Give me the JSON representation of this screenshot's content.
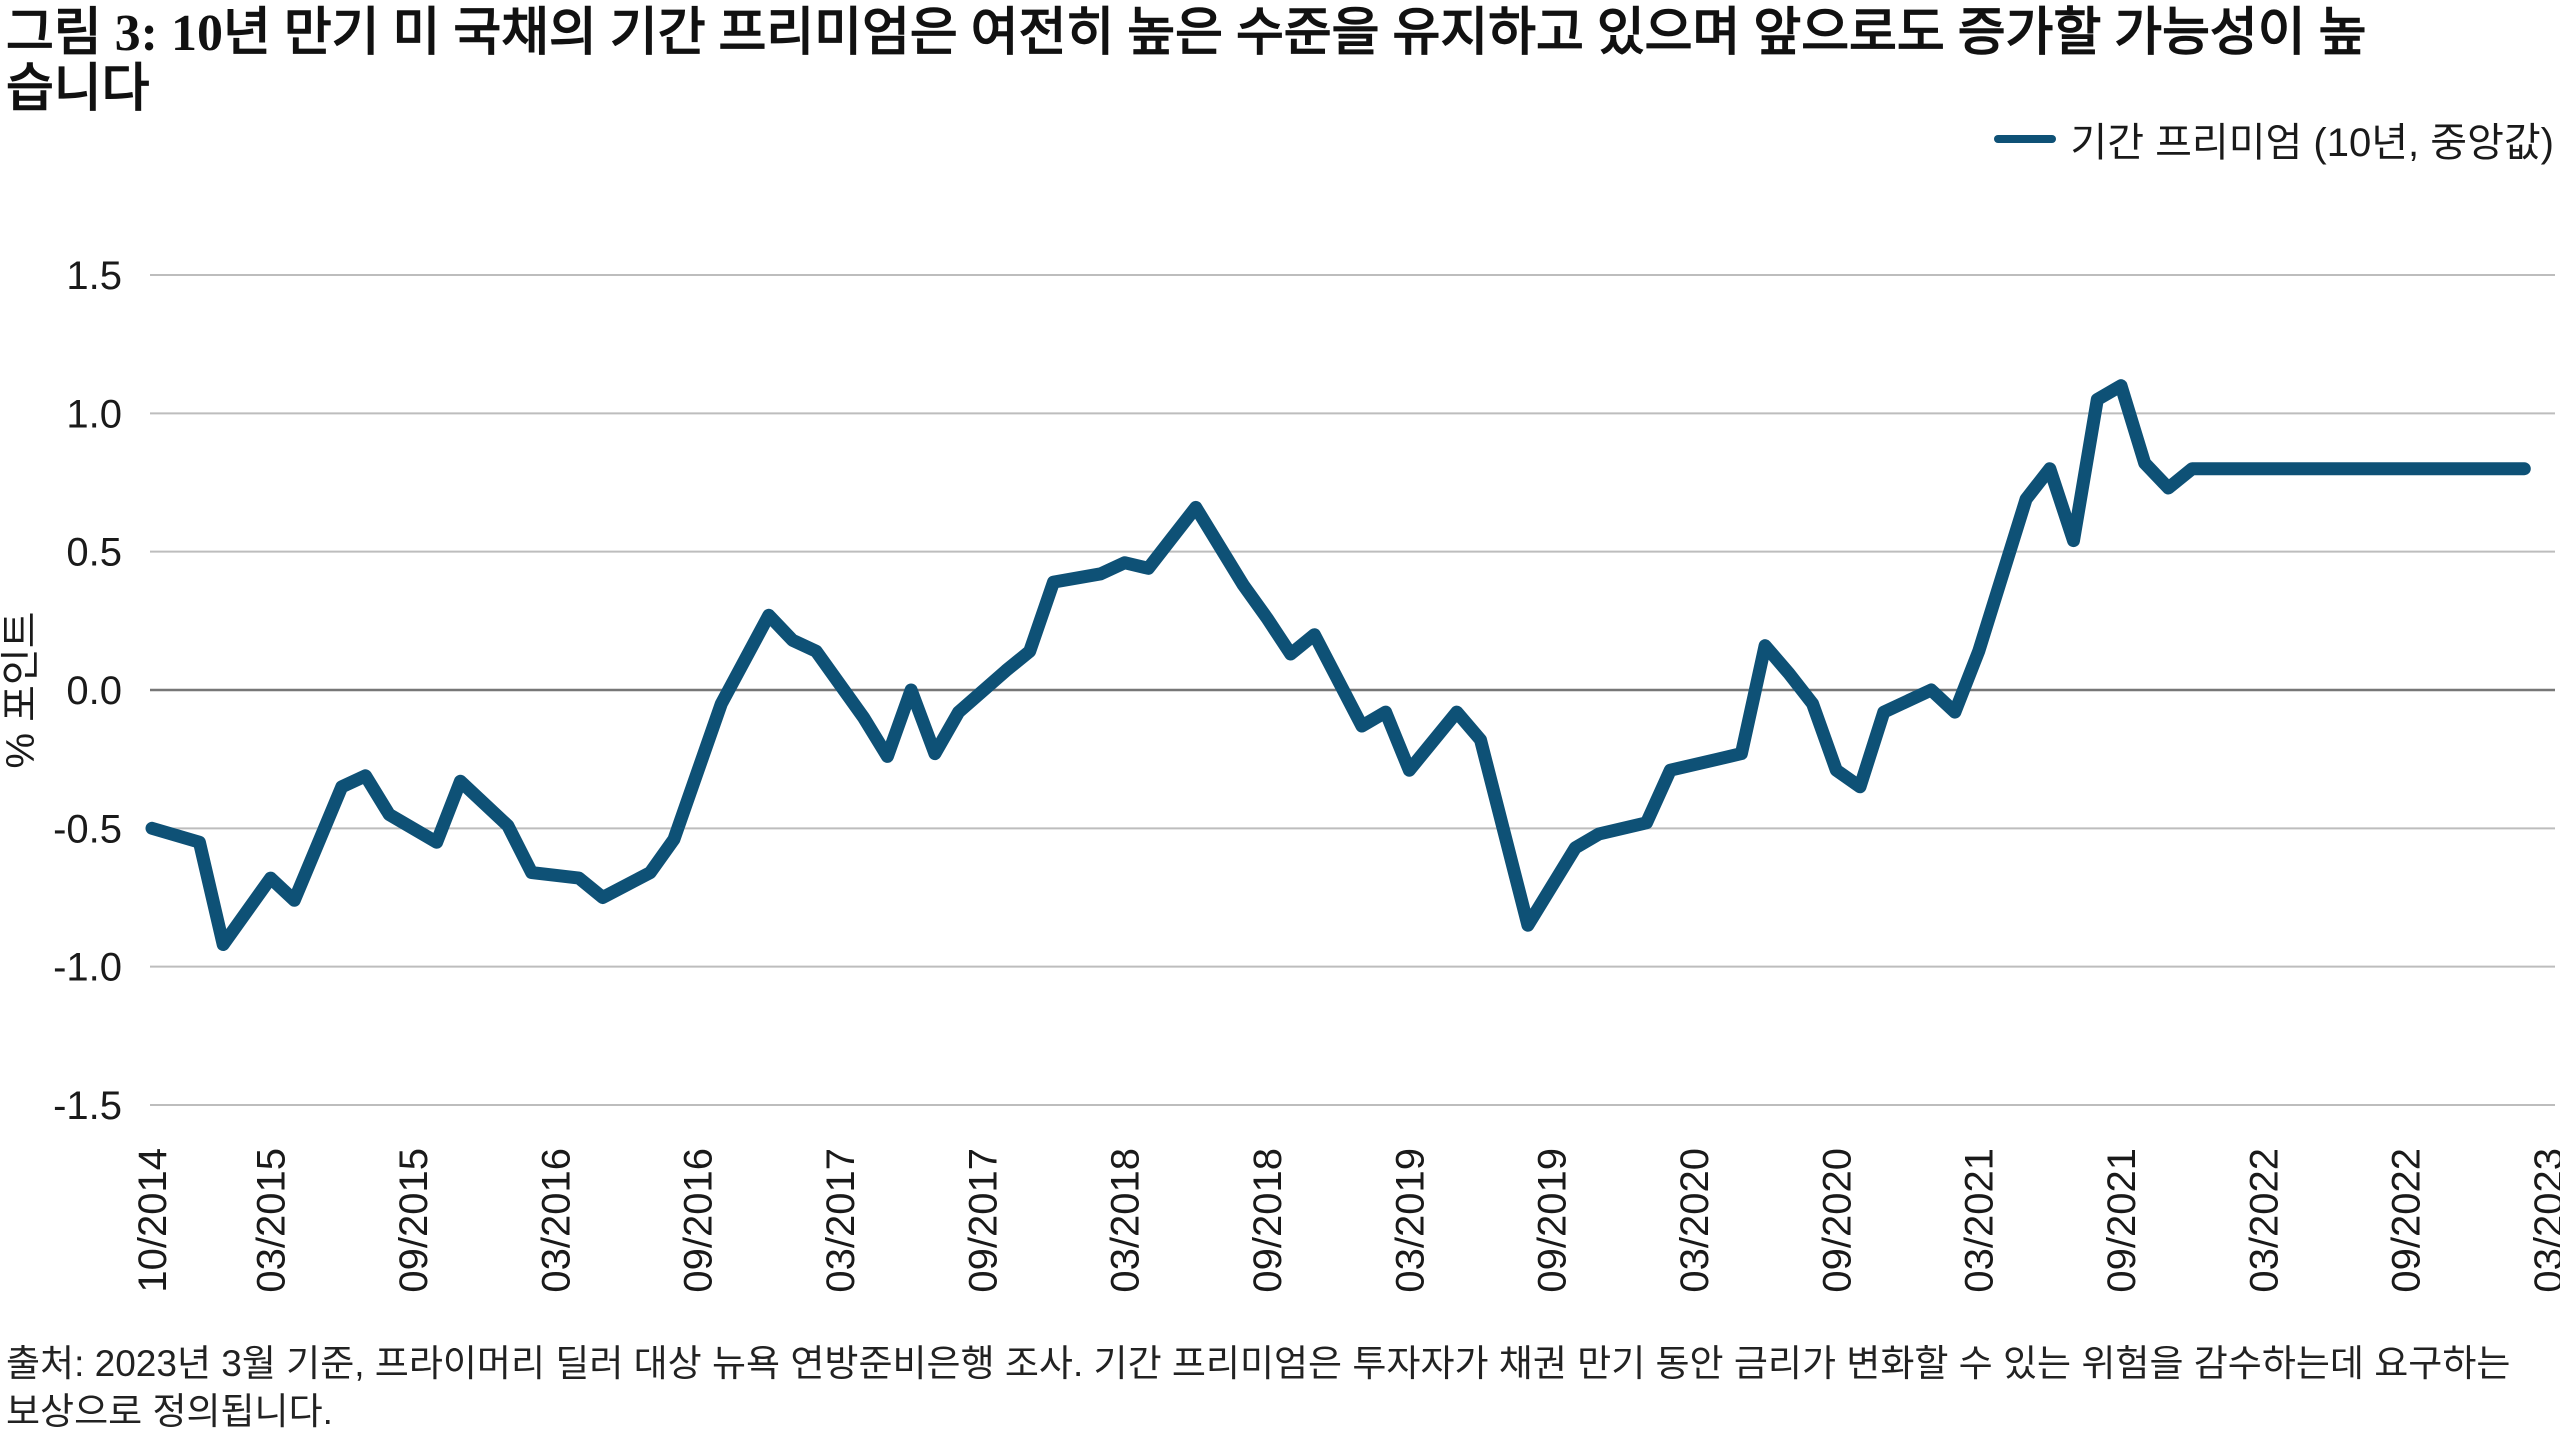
{
  "title": "그림 3: 10년 만기 미 국채의 기간 프리미엄은 여전히 높은 수준을 유지하고 있으며 앞으로도 증가할 가능성이 높습니다",
  "footnote": "출처: 2023년 3월 기준, 프라이머리 딜러 대상 뉴욕 연방준비은행 조사. 기간 프리미엄은 투자자가 채권 만기 동안 금리가 변화할 수 있는 위험을 감수하는데 요구하는 보상으로 정의됩니다.",
  "chart_data": {
    "type": "line",
    "ylabel": "% 포인트",
    "xlabel": "",
    "ylim": [
      -1.5,
      1.5
    ],
    "yticks": [
      "1.5",
      "1.0",
      "0.5",
      "0.0",
      "-0.5",
      "-1.0",
      "-1.5"
    ],
    "ytick_values": [
      1.5,
      1.0,
      0.5,
      0.0,
      -0.5,
      -1.0,
      -1.5
    ],
    "xticks": [
      "10/2014",
      "03/2015",
      "09/2015",
      "03/2016",
      "09/2016",
      "03/2017",
      "09/2017",
      "03/2018",
      "09/2018",
      "03/2019",
      "09/2019",
      "03/2020",
      "09/2020",
      "03/2021",
      "09/2021",
      "03/2022",
      "09/2022",
      "03/2023"
    ],
    "xtick_months": [
      0,
      5,
      11,
      17,
      23,
      29,
      35,
      41,
      47,
      53,
      59,
      65,
      71,
      77,
      83,
      89,
      95,
      101
    ],
    "grid": true,
    "legend_position": "top-right",
    "colors": {
      "series": "#0e5176",
      "grid": "#bdbdbd",
      "zero": "#777777"
    },
    "series": [
      {
        "name": "기간 프리미엄 (10년, 중앙값)",
        "x": [
          0,
          2,
          3,
          5,
          6,
          8,
          9,
          10,
          12,
          13,
          15,
          16,
          18,
          19,
          21,
          22,
          24,
          26,
          27,
          28,
          30,
          31,
          32,
          33,
          34,
          36,
          37,
          38,
          40,
          41,
          42,
          43,
          44,
          46,
          47,
          48,
          49,
          51,
          52,
          53,
          55,
          56,
          58,
          60,
          61,
          63,
          64,
          66,
          67,
          68,
          69,
          70,
          71,
          72,
          73,
          75,
          76,
          77,
          79,
          80,
          81,
          82,
          83,
          84,
          85,
          86,
          88,
          89,
          90,
          91,
          92,
          94,
          96,
          97,
          98,
          100
        ],
        "values": [
          -0.5,
          -0.55,
          -0.92,
          -0.68,
          -0.76,
          -0.35,
          -0.31,
          -0.45,
          -0.55,
          -0.33,
          -0.49,
          -0.66,
          -0.68,
          -0.75,
          -0.66,
          -0.54,
          -0.05,
          0.27,
          0.18,
          0.14,
          -0.1,
          -0.24,
          0.0,
          -0.23,
          -0.08,
          0.07,
          0.14,
          0.39,
          0.42,
          0.46,
          0.44,
          0.55,
          0.66,
          0.38,
          0.26,
          0.13,
          0.2,
          -0.13,
          -0.08,
          -0.29,
          -0.08,
          -0.18,
          -0.85,
          -0.57,
          -0.52,
          -0.48,
          -0.29,
          -0.25,
          -0.23,
          0.16,
          0.06,
          -0.05,
          -0.29,
          -0.35,
          -0.08,
          0.0,
          -0.08,
          0.14,
          0.69,
          0.8,
          0.54,
          1.05,
          1.1,
          0.82,
          0.73,
          0.8,
          0.8,
          0.8,
          0.8,
          0.8,
          0.8,
          0.8,
          0.8,
          0.8,
          0.8,
          0.8
        ]
      }
    ]
  }
}
